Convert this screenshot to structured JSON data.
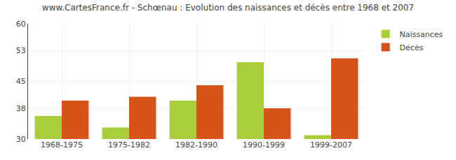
{
  "chart_data": {
    "type": "bar",
    "title": "www.CartesFrance.fr - Schœnau : Evolution des naissances et décès entre 1968 et 2007",
    "categories": [
      "1968-1975",
      "1975-1982",
      "1982-1990",
      "1990-1999",
      "1999-2007"
    ],
    "series": [
      {
        "name": "Naissances",
        "color": "#aace3a",
        "values": [
          36,
          33,
          40,
          50,
          31
        ]
      },
      {
        "name": "Décès",
        "color": "#d4541a",
        "values": [
          40,
          41,
          44,
          38,
          51
        ]
      }
    ],
    "ylim": [
      30,
      60
    ],
    "yticks": [
      30,
      38,
      45,
      53,
      60
    ],
    "grid": true,
    "legend": "upper right"
  }
}
